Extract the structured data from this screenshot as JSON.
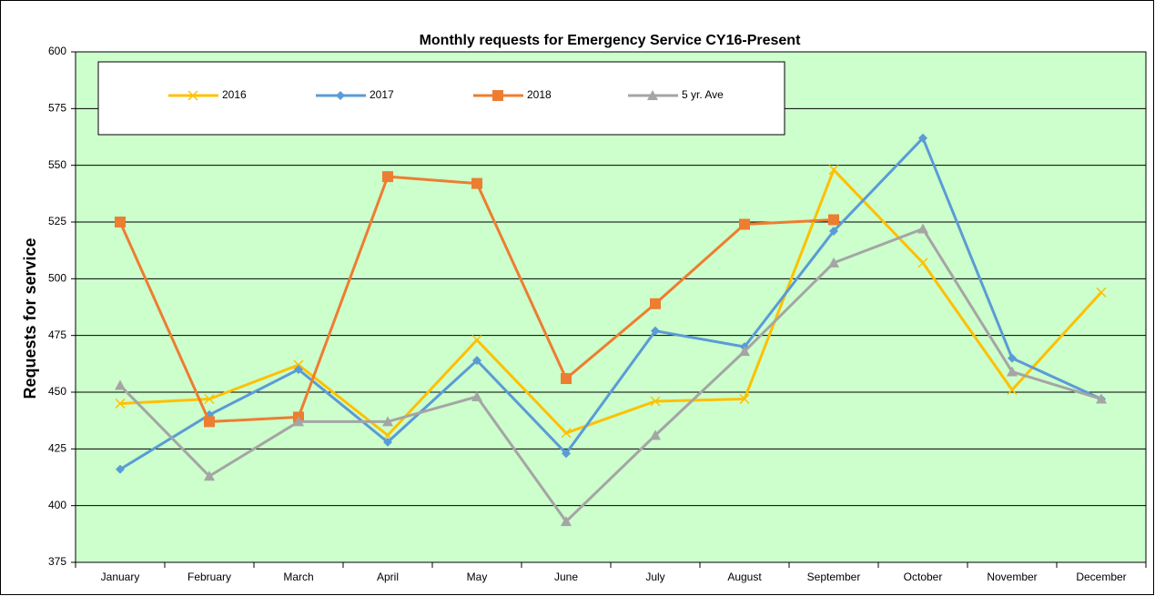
{
  "chart_data": {
    "type": "line",
    "title": "Monthly requests for Emergency Service CY16-Present",
    "y_label": "Requests for service",
    "categories": [
      "January",
      "February",
      "March",
      "April",
      "May",
      "June",
      "July",
      "August",
      "September",
      "October",
      "November",
      "December"
    ],
    "series": [
      {
        "name": "2016",
        "color": "#ffc000",
        "marker": "x",
        "values": [
          445,
          447,
          462,
          431,
          473,
          432,
          446,
          447,
          548,
          507,
          451,
          494
        ]
      },
      {
        "name": "2017",
        "color": "#5b9bd5",
        "marker": "diamond",
        "values": [
          416,
          440,
          460,
          428,
          464,
          423,
          477,
          470,
          521,
          562,
          465,
          447
        ]
      },
      {
        "name": "2018",
        "color": "#ed7d31",
        "marker": "square",
        "values": [
          525,
          437,
          439,
          545,
          542,
          456,
          489,
          524,
          526,
          null,
          null,
          null
        ]
      },
      {
        "name": "5 yr. Ave",
        "color": "#a5a5a5",
        "marker": "triangle",
        "values": [
          453,
          413,
          437,
          437,
          448,
          393,
          431,
          468,
          507,
          522,
          459,
          447
        ]
      }
    ],
    "ylim": [
      375,
      600
    ],
    "yticks": [
      375,
      400,
      425,
      450,
      475,
      500,
      525,
      550,
      575,
      600
    ],
    "grid": true,
    "plot_background": "#ccffcc",
    "legend": "top"
  }
}
